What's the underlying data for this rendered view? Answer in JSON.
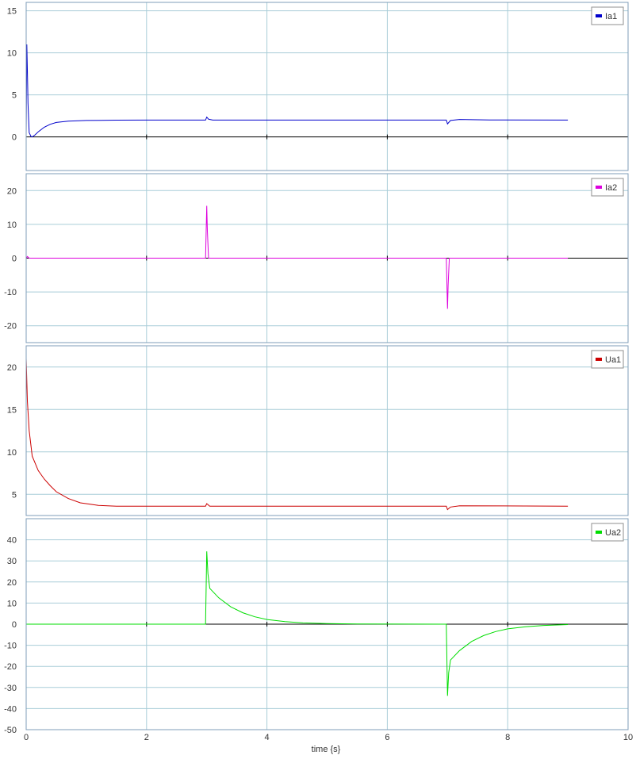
{
  "xaxis": {
    "label": "time {s}",
    "range": [
      0,
      10
    ],
    "ticks": [
      0,
      2,
      4,
      6,
      8,
      10
    ]
  },
  "colors": {
    "grid": "#a9cdd8",
    "frame": "#7f9db9",
    "zero_line": "#000000"
  },
  "chart_data": [
    {
      "type": "line",
      "legend": "Ia1",
      "color": "#0000cc",
      "ylim": [
        -4,
        16
      ],
      "yticks": [
        0,
        5,
        10,
        15
      ],
      "points": [
        [
          0,
          0
        ],
        [
          0.01,
          11
        ],
        [
          0.02,
          8
        ],
        [
          0.03,
          4
        ],
        [
          0.05,
          0.5
        ],
        [
          0.08,
          0.05
        ],
        [
          0.1,
          0
        ],
        [
          0.15,
          0.25
        ],
        [
          0.2,
          0.6
        ],
        [
          0.3,
          1.15
        ],
        [
          0.4,
          1.5
        ],
        [
          0.5,
          1.72
        ],
        [
          0.7,
          1.88
        ],
        [
          1.0,
          1.95
        ],
        [
          1.5,
          1.99
        ],
        [
          2.0,
          2.0
        ],
        [
          2.98,
          2.0
        ],
        [
          3.0,
          2.35
        ],
        [
          3.03,
          2.1
        ],
        [
          3.1,
          2.0
        ],
        [
          6.98,
          2.0
        ],
        [
          7.0,
          1.55
        ],
        [
          7.05,
          1.95
        ],
        [
          7.2,
          2.08
        ],
        [
          7.7,
          2.02
        ],
        [
          9.0,
          2.0
        ]
      ]
    },
    {
      "type": "line",
      "legend": "Ia2",
      "color": "#dd00dd",
      "ylim": [
        -25,
        25
      ],
      "yticks": [
        -20,
        -10,
        0,
        10,
        20
      ],
      "points": [
        [
          0,
          0
        ],
        [
          0.02,
          0.5
        ],
        [
          0.05,
          0
        ],
        [
          2.98,
          0
        ],
        [
          3.0,
          15.5
        ],
        [
          3.01,
          8
        ],
        [
          3.03,
          0
        ],
        [
          6.98,
          0
        ],
        [
          7.0,
          -15
        ],
        [
          7.01,
          -8
        ],
        [
          7.03,
          0
        ],
        [
          9.0,
          0
        ]
      ]
    },
    {
      "type": "line",
      "legend": "Ua1",
      "color": "#cc0000",
      "ylim": [
        2.5,
        22.5
      ],
      "yticks": [
        5,
        10,
        15,
        20
      ],
      "points": [
        [
          0,
          21
        ],
        [
          0.02,
          16
        ],
        [
          0.05,
          12.5
        ],
        [
          0.1,
          9.5
        ],
        [
          0.2,
          7.8
        ],
        [
          0.3,
          6.8
        ],
        [
          0.4,
          6.0
        ],
        [
          0.5,
          5.3
        ],
        [
          0.7,
          4.5
        ],
        [
          0.9,
          4.0
        ],
        [
          1.2,
          3.7
        ],
        [
          1.5,
          3.6
        ],
        [
          2.98,
          3.6
        ],
        [
          3.0,
          3.9
        ],
        [
          3.05,
          3.6
        ],
        [
          6.98,
          3.6
        ],
        [
          7.0,
          3.2
        ],
        [
          7.05,
          3.5
        ],
        [
          7.2,
          3.65
        ],
        [
          9.0,
          3.6
        ]
      ]
    },
    {
      "type": "line",
      "legend": "Ua2",
      "color": "#00dd00",
      "ylim": [
        -50,
        50
      ],
      "yticks": [
        -50,
        -40,
        -30,
        -20,
        -10,
        0,
        10,
        20,
        30,
        40
      ],
      "points": [
        [
          0,
          0
        ],
        [
          2.98,
          0
        ],
        [
          3.0,
          34.5
        ],
        [
          3.02,
          24
        ],
        [
          3.05,
          17
        ],
        [
          3.2,
          12.5
        ],
        [
          3.4,
          8.2
        ],
        [
          3.6,
          5.4
        ],
        [
          3.8,
          3.5
        ],
        [
          4.0,
          2.2
        ],
        [
          4.3,
          1.2
        ],
        [
          4.6,
          0.6
        ],
        [
          5.0,
          0.3
        ],
        [
          5.5,
          0.1
        ],
        [
          6.98,
          0
        ],
        [
          7.0,
          -34
        ],
        [
          7.02,
          -23
        ],
        [
          7.05,
          -17
        ],
        [
          7.2,
          -12.5
        ],
        [
          7.4,
          -8.2
        ],
        [
          7.6,
          -5.4
        ],
        [
          7.8,
          -3.5
        ],
        [
          8.0,
          -2.2
        ],
        [
          8.3,
          -1.2
        ],
        [
          8.6,
          -0.6
        ],
        [
          9.0,
          -0.2
        ]
      ]
    }
  ]
}
